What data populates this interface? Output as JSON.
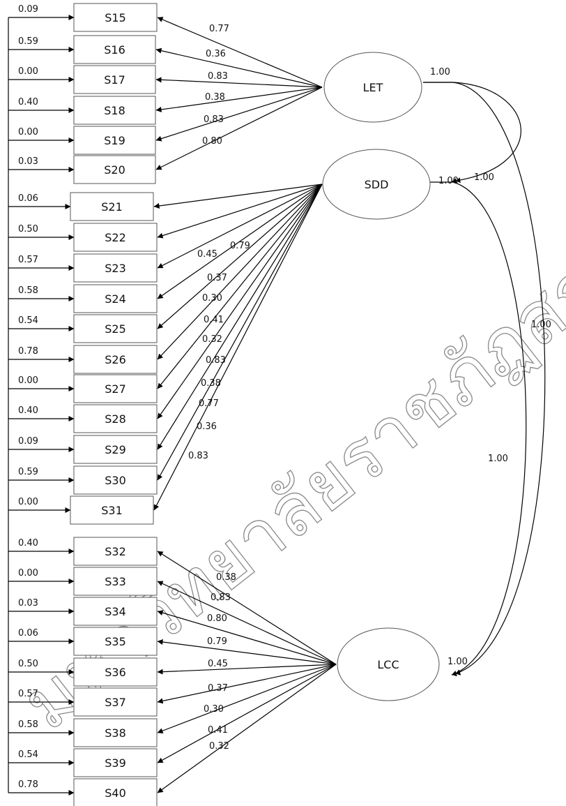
{
  "indicators": [
    {
      "label": "S15",
      "error": "0.09"
    },
    {
      "label": "S16",
      "error": "0.59"
    },
    {
      "label": "S17",
      "error": "0.00"
    },
    {
      "label": "S18",
      "error": "0.40"
    },
    {
      "label": "S19",
      "error": "0.00"
    },
    {
      "label": "S20",
      "error": "0.03"
    },
    {
      "label": "S21",
      "error": "0.06"
    },
    {
      "label": "S22",
      "error": "0.50"
    },
    {
      "label": "S23",
      "error": "0.57"
    },
    {
      "label": "S24",
      "error": "0.58"
    },
    {
      "label": "S25",
      "error": "0.54"
    },
    {
      "label": "S26",
      "error": "0.78"
    },
    {
      "label": "S27",
      "error": "0.00"
    },
    {
      "label": "S28",
      "error": "0.40"
    },
    {
      "label": "S29",
      "error": "0.09"
    },
    {
      "label": "S30",
      "error": "0.59"
    },
    {
      "label": "S31",
      "error": "0.00"
    },
    {
      "label": "S32",
      "error": "0.40"
    },
    {
      "label": "S33",
      "error": "0.00"
    },
    {
      "label": "S34",
      "error": "0.03"
    },
    {
      "label": "S35",
      "error": "0.06"
    },
    {
      "label": "S36",
      "error": "0.50"
    },
    {
      "label": "S37",
      "error": "0.57"
    },
    {
      "label": "S38",
      "error": "0.58"
    },
    {
      "label": "S39",
      "error": "0.54"
    },
    {
      "label": "S40",
      "error": "0.78"
    }
  ],
  "factors": [
    {
      "name": "LET",
      "variance": "1.00",
      "indicator_range": [
        0,
        5
      ],
      "loadings": [
        "0.77",
        "0.36",
        "0.83",
        "0.38",
        "0.83",
        "0.80"
      ]
    },
    {
      "name": "SDD",
      "variance": "1.00",
      "indicator_range": [
        6,
        16
      ],
      "loadings": [
        "0.79",
        "0.45",
        "0.37",
        "0.30",
        "0.41",
        "0.32",
        "0.83",
        "0.38",
        "0.77",
        "0.36",
        "0.83"
      ]
    },
    {
      "name": "LCC",
      "variance": "1.00",
      "indicator_range": [
        17,
        25
      ],
      "loadings": [
        "0.38",
        "0.83",
        "0.80",
        "0.79",
        "0.45",
        "0.37",
        "0.30",
        "0.41",
        "0.32"
      ]
    }
  ],
  "correlations": [
    {
      "from": "LET",
      "to": "SDD",
      "value": "1.00"
    },
    {
      "from": "LET",
      "to": "LCC",
      "value": "1.00"
    },
    {
      "from": "SDD",
      "to": "LCC",
      "value": "1.00"
    }
  ],
  "watermark": "มหาวิทยาลัยราชภัฏสกลนคร"
}
